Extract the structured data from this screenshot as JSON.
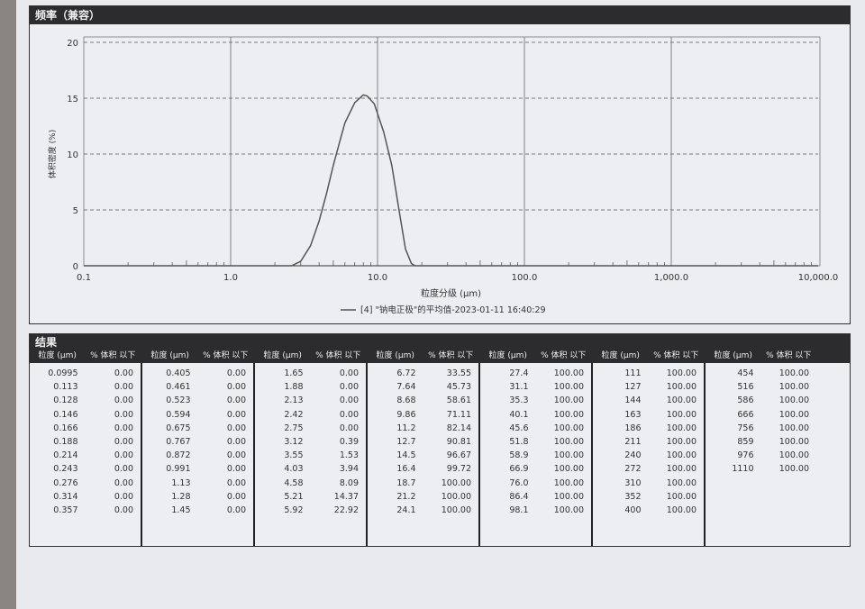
{
  "chart_section_title": "频率（兼容）",
  "results_title": "结果",
  "chart_data": {
    "type": "line",
    "xlabel": "粒度分级 (μm)",
    "ylabel": "体积密度 (%)",
    "xscale": "log",
    "xlim": [
      0.1,
      10000
    ],
    "ylim": [
      0,
      20
    ],
    "xticks": [
      "0.1",
      "1.0",
      "10.0",
      "100.0",
      "1,000.0",
      "10,000.0"
    ],
    "yticks": [
      "0",
      "5",
      "10",
      "15",
      "20"
    ],
    "grid": true,
    "legend_placement": "bottom-center",
    "series": [
      {
        "name": "[4] \"钠电正极\"的平均值-2023-01-11 16:40:29",
        "color": "#555555",
        "x": [
          2.6,
          3.0,
          3.5,
          4.0,
          4.5,
          5.0,
          5.5,
          6.0,
          7.0,
          8.0,
          8.5,
          9.5,
          11.0,
          12.5,
          14.0,
          15.5,
          17.0,
          18.0
        ],
        "y": [
          0,
          0.4,
          1.8,
          4.0,
          6.5,
          9.0,
          11.0,
          12.8,
          14.6,
          15.3,
          15.2,
          14.5,
          12.0,
          9.0,
          5.0,
          1.5,
          0.2,
          0
        ]
      }
    ]
  },
  "table": {
    "header_size": "粒度 (μm)",
    "header_pct": "% 体积 以下",
    "columns": [
      [
        [
          "0.0995",
          "0.00"
        ],
        [
          "0.113",
          "0.00"
        ],
        [
          "0.128",
          "0.00"
        ],
        [
          "0.146",
          "0.00"
        ],
        [
          "0.166",
          "0.00"
        ],
        [
          "0.188",
          "0.00"
        ],
        [
          "0.214",
          "0.00"
        ],
        [
          "0.243",
          "0.00"
        ],
        [
          "0.276",
          "0.00"
        ],
        [
          "0.314",
          "0.00"
        ],
        [
          "0.357",
          "0.00"
        ]
      ],
      [
        [
          "0.405",
          "0.00"
        ],
        [
          "0.461",
          "0.00"
        ],
        [
          "0.523",
          "0.00"
        ],
        [
          "0.594",
          "0.00"
        ],
        [
          "0.675",
          "0.00"
        ],
        [
          "0.767",
          "0.00"
        ],
        [
          "0.872",
          "0.00"
        ],
        [
          "0.991",
          "0.00"
        ],
        [
          "1.13",
          "0.00"
        ],
        [
          "1.28",
          "0.00"
        ],
        [
          "1.45",
          "0.00"
        ]
      ],
      [
        [
          "1.65",
          "0.00"
        ],
        [
          "1.88",
          "0.00"
        ],
        [
          "2.13",
          "0.00"
        ],
        [
          "2.42",
          "0.00"
        ],
        [
          "2.75",
          "0.00"
        ],
        [
          "3.12",
          "0.39"
        ],
        [
          "3.55",
          "1.53"
        ],
        [
          "4.03",
          "3.94"
        ],
        [
          "4.58",
          "8.09"
        ],
        [
          "5.21",
          "14.37"
        ],
        [
          "5.92",
          "22.92"
        ]
      ],
      [
        [
          "6.72",
          "33.55"
        ],
        [
          "7.64",
          "45.73"
        ],
        [
          "8.68",
          "58.61"
        ],
        [
          "9.86",
          "71.11"
        ],
        [
          "11.2",
          "82.14"
        ],
        [
          "12.7",
          "90.81"
        ],
        [
          "14.5",
          "96.67"
        ],
        [
          "16.4",
          "99.72"
        ],
        [
          "18.7",
          "100.00"
        ],
        [
          "21.2",
          "100.00"
        ],
        [
          "24.1",
          "100.00"
        ]
      ],
      [
        [
          "27.4",
          "100.00"
        ],
        [
          "31.1",
          "100.00"
        ],
        [
          "35.3",
          "100.00"
        ],
        [
          "40.1",
          "100.00"
        ],
        [
          "45.6",
          "100.00"
        ],
        [
          "51.8",
          "100.00"
        ],
        [
          "58.9",
          "100.00"
        ],
        [
          "66.9",
          "100.00"
        ],
        [
          "76.0",
          "100.00"
        ],
        [
          "86.4",
          "100.00"
        ],
        [
          "98.1",
          "100.00"
        ]
      ],
      [
        [
          "111",
          "100.00"
        ],
        [
          "127",
          "100.00"
        ],
        [
          "144",
          "100.00"
        ],
        [
          "163",
          "100.00"
        ],
        [
          "186",
          "100.00"
        ],
        [
          "211",
          "100.00"
        ],
        [
          "240",
          "100.00"
        ],
        [
          "272",
          "100.00"
        ],
        [
          "310",
          "100.00"
        ],
        [
          "352",
          "100.00"
        ],
        [
          "400",
          "100.00"
        ]
      ],
      [
        [
          "454",
          "100.00"
        ],
        [
          "516",
          "100.00"
        ],
        [
          "586",
          "100.00"
        ],
        [
          "666",
          "100.00"
        ],
        [
          "756",
          "100.00"
        ],
        [
          "859",
          "100.00"
        ],
        [
          "976",
          "100.00"
        ],
        [
          "1110",
          "100.00"
        ]
      ]
    ]
  }
}
